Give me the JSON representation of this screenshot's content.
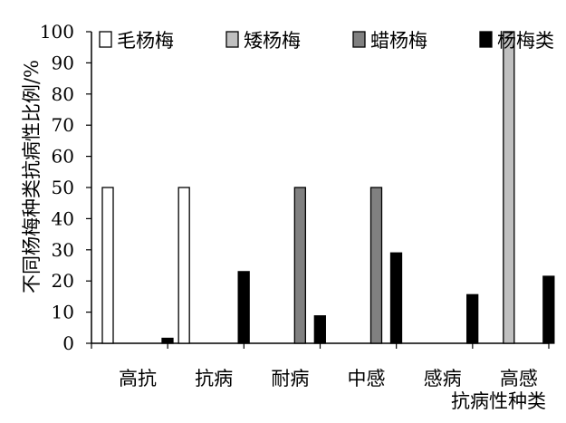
{
  "chart_data": {
    "type": "bar",
    "title": "",
    "xlabel": "抗病性种类",
    "ylabel": "不同杨梅种类抗病性比例/%",
    "ylim": [
      0,
      100
    ],
    "yticks": [
      0,
      10,
      20,
      30,
      40,
      50,
      60,
      70,
      80,
      90,
      100
    ],
    "grid": false,
    "legend_position": "top",
    "categories": [
      "高抗",
      "抗病",
      "耐病",
      "中感",
      "感病",
      "高感"
    ],
    "series": [
      {
        "name": "毛杨梅",
        "color": "#ffffff",
        "values": [
          50,
          50,
          0,
          0,
          0,
          0
        ]
      },
      {
        "name": "矮杨梅",
        "color": "#c0c0c0",
        "values": [
          0,
          0,
          0,
          0,
          0,
          100
        ]
      },
      {
        "name": "蜡杨梅",
        "color": "#808080",
        "values": [
          0,
          0,
          50,
          50,
          0,
          0
        ]
      },
      {
        "name": "杨梅类",
        "color": "#000000",
        "values": [
          1.6,
          23,
          8.8,
          29,
          15.6,
          21.5
        ]
      }
    ]
  }
}
